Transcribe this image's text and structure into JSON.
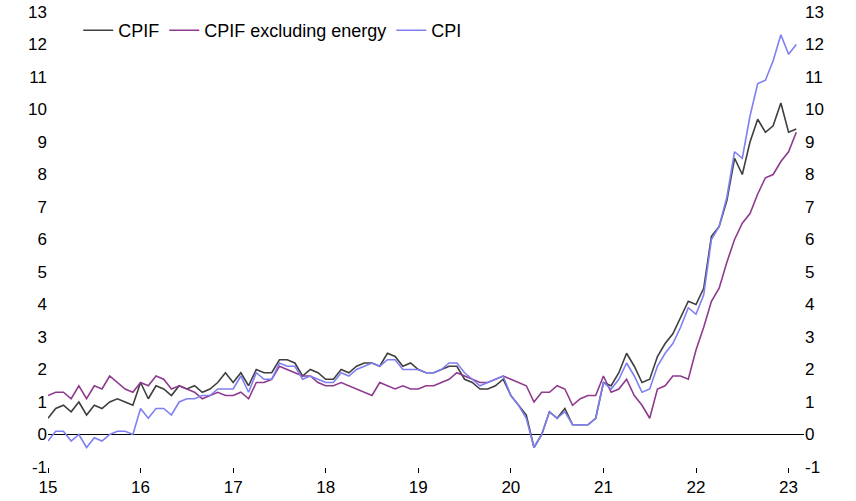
{
  "chart_data": {
    "type": "line",
    "categories": [
      "15",
      null,
      null,
      null,
      null,
      null,
      null,
      null,
      null,
      null,
      null,
      null,
      "16",
      null,
      null,
      null,
      null,
      null,
      null,
      null,
      null,
      null,
      null,
      null,
      "17",
      null,
      null,
      null,
      null,
      null,
      null,
      null,
      null,
      null,
      null,
      null,
      "18",
      null,
      null,
      null,
      null,
      null,
      null,
      null,
      null,
      null,
      null,
      null,
      "19",
      null,
      null,
      null,
      null,
      null,
      null,
      null,
      null,
      null,
      null,
      null,
      "20",
      null,
      null,
      null,
      null,
      null,
      null,
      null,
      null,
      null,
      null,
      null,
      "21",
      null,
      null,
      null,
      null,
      null,
      null,
      null,
      null,
      null,
      null,
      null,
      "22",
      null,
      null,
      null,
      null,
      null,
      null,
      null,
      null,
      null,
      null,
      null,
      "23",
      null
    ],
    "series": [
      {
        "name": "CPIF",
        "color": "#3f3f3f",
        "values": [
          0.5,
          0.8,
          0.9,
          0.7,
          1.0,
          0.6,
          0.9,
          0.8,
          1.0,
          1.1,
          1.0,
          0.9,
          1.6,
          1.1,
          1.5,
          1.4,
          1.2,
          1.5,
          1.4,
          1.5,
          1.3,
          1.4,
          1.6,
          1.9,
          1.6,
          1.9,
          1.5,
          2.0,
          1.9,
          1.9,
          2.3,
          2.3,
          2.2,
          1.8,
          2.0,
          1.9,
          1.7,
          1.7,
          2.0,
          1.9,
          2.1,
          2.2,
          2.2,
          2.1,
          2.5,
          2.4,
          2.1,
          2.2,
          2.0,
          1.9,
          1.9,
          2.0,
          2.1,
          2.1,
          1.7,
          1.6,
          1.4,
          1.4,
          1.5,
          1.7,
          1.2,
          0.9,
          0.6,
          -0.4,
          0.0,
          0.7,
          0.5,
          0.8,
          0.3,
          0.3,
          0.3,
          0.5,
          1.6,
          1.5,
          1.9,
          2.5,
          2.1,
          1.6,
          1.7,
          2.4,
          2.8,
          3.1,
          3.6,
          4.1,
          4.0,
          4.5,
          6.1,
          6.4,
          7.2,
          8.5,
          8.0,
          9.0,
          9.7,
          9.3,
          9.5,
          10.2,
          9.3,
          9.4
        ]
      },
      {
        "name": "CPIF excluding energy",
        "color": "#8e3a8e",
        "values": [
          1.2,
          1.3,
          1.3,
          1.1,
          1.5,
          1.1,
          1.5,
          1.4,
          1.8,
          1.6,
          1.4,
          1.3,
          1.6,
          1.5,
          1.8,
          1.7,
          1.4,
          1.5,
          1.4,
          1.3,
          1.1,
          1.2,
          1.3,
          1.2,
          1.2,
          1.3,
          1.1,
          1.6,
          1.6,
          1.7,
          2.1,
          2.0,
          1.9,
          1.8,
          1.8,
          1.6,
          1.5,
          1.5,
          1.6,
          1.5,
          1.4,
          1.3,
          1.2,
          1.6,
          1.5,
          1.4,
          1.5,
          1.4,
          1.4,
          1.5,
          1.5,
          1.6,
          1.7,
          1.9,
          1.8,
          1.7,
          1.6,
          1.6,
          1.7,
          1.8,
          1.7,
          1.6,
          1.5,
          1.0,
          1.3,
          1.3,
          1.5,
          1.4,
          0.9,
          1.1,
          1.2,
          1.2,
          1.8,
          1.3,
          1.4,
          1.7,
          1.2,
          0.9,
          0.5,
          1.4,
          1.5,
          1.8,
          1.8,
          1.7,
          2.6,
          3.3,
          4.1,
          4.5,
          5.3,
          6.0,
          6.5,
          6.8,
          7.4,
          7.9,
          8.0,
          8.4,
          8.7,
          9.3
        ]
      },
      {
        "name": "CPI",
        "color": "#7f7ff2",
        "values": [
          -0.2,
          0.1,
          0.1,
          -0.2,
          0.0,
          -0.4,
          -0.1,
          -0.2,
          0.0,
          0.1,
          0.1,
          0.0,
          0.8,
          0.5,
          0.8,
          0.8,
          0.6,
          1.0,
          1.1,
          1.1,
          1.2,
          1.2,
          1.4,
          1.4,
          1.4,
          1.8,
          1.3,
          1.9,
          1.7,
          1.7,
          2.2,
          2.1,
          2.1,
          1.7,
          1.8,
          1.7,
          1.6,
          1.6,
          1.9,
          1.8,
          2.0,
          2.1,
          2.2,
          2.1,
          2.3,
          2.3,
          2.0,
          2.0,
          2.0,
          1.9,
          1.9,
          2.0,
          2.2,
          2.2,
          1.9,
          1.7,
          1.5,
          1.6,
          1.7,
          1.8,
          1.2,
          0.9,
          0.5,
          -0.4,
          0.0,
          0.7,
          0.5,
          0.7,
          0.3,
          0.3,
          0.3,
          0.5,
          1.6,
          1.4,
          1.7,
          2.2,
          1.8,
          1.3,
          1.4,
          2.1,
          2.5,
          2.8,
          3.3,
          3.9,
          3.7,
          4.3,
          6.0,
          6.4,
          7.3,
          8.7,
          8.5,
          9.8,
          10.8,
          10.9,
          11.5,
          12.3,
          11.7,
          12.0
        ]
      }
    ],
    "ylim": [
      -1,
      13
    ],
    "yticks": [
      -1,
      0,
      1,
      2,
      3,
      4,
      5,
      6,
      7,
      8,
      9,
      10,
      11,
      12,
      13
    ],
    "grid": false,
    "legend": "top left"
  }
}
